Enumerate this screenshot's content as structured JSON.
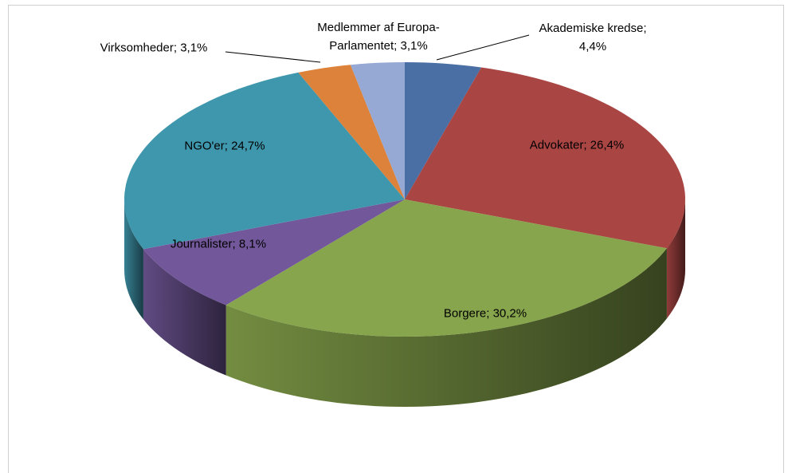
{
  "chart_data": {
    "type": "pie",
    "values": [
      4.4,
      26.4,
      30.2,
      8.1,
      24.7,
      3.1,
      3.1
    ],
    "value_labels": [
      "Akademiske kredse; 4,4%",
      "Advokater; 26,4%",
      "Borgere; 30,2%",
      "Journalister; 8,1%",
      "NGO'er; 24,7%",
      "Virksomheder; 3,1%",
      "Medlemmer af Europa-Parlamentet; 3,1%"
    ],
    "colors": [
      "#4a6fa5",
      "#a94543",
      "#87a54c",
      "#72589a",
      "#3f97ad",
      "#dc823a",
      "#95a9d4"
    ]
  }
}
